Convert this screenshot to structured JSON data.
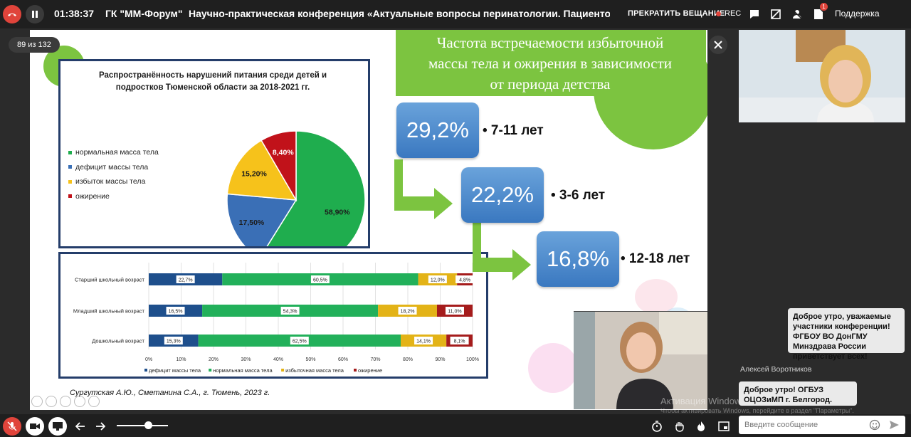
{
  "topbar": {
    "timer": "01:38:37",
    "organizer": "ГК \"ММ-Форум\"",
    "title": "Научно-практическая конференция «Актуальные вопросы перинатологии. Пациентоориен",
    "stop_broadcast": "ПРЕКРАТИТЬ ВЕЩАНИЕ",
    "rec": "REC",
    "notifications_badge": "1",
    "support": "Поддержка"
  },
  "slide_counter": "89 из 132",
  "slide": {
    "pie_title_line1": "Распространённость нарушений питания среди детей и",
    "pie_title_line2": "подростков Тюменской области за 2018-2021 гг.",
    "header_line1": "Частота встречаемости избыточной",
    "header_line2": "массы тела и  ожирения в зависимости",
    "header_line3": "от периода детства",
    "boxes": [
      {
        "value": "29,2%",
        "label": "• 7-11 лет"
      },
      {
        "value": "22,2%",
        "label": "• 3-6 лет"
      },
      {
        "value": "16,8%",
        "label": "• 12-18 лет"
      }
    ],
    "source": "Сургутская А.Ю., Сметанина С.А., г. Тюмень, 2023 г."
  },
  "chart_data": [
    {
      "type": "pie",
      "title": "Распространённость нарушений питания среди детей и подростков Тюменской области за 2018-2021 гг.",
      "categories": [
        "нормальная масса тела",
        "дефицит массы тела",
        "избыток массы тела",
        "ожирение"
      ],
      "values": [
        58.9,
        17.5,
        15.2,
        8.4
      ],
      "value_labels": [
        "58,90%",
        "17,50%",
        "15,20%",
        "8,40%"
      ],
      "colors": [
        "#1fad4e",
        "#3a6fb6",
        "#f6c21b",
        "#c1121a"
      ],
      "legend_position": "left"
    },
    {
      "type": "bar",
      "orientation": "horizontal-stacked-100",
      "categories": [
        "Старший школьный возраст",
        "Младший школьный возраст",
        "Дошкольный возраст"
      ],
      "series": [
        {
          "name": "дефицит массы тела",
          "values": [
            22.7,
            16.5,
            15.3
          ],
          "labels": [
            "22,7%",
            "16,5%",
            "15,3%"
          ],
          "color": "#1e4f8c"
        },
        {
          "name": "нормальная масса тела",
          "values": [
            60.5,
            54.3,
            62.5
          ],
          "labels": [
            "60,5%",
            "54,3%",
            "62,5%"
          ],
          "color": "#22b05a"
        },
        {
          "name": "избыточная масса тела",
          "values": [
            12.0,
            18.2,
            14.1
          ],
          "labels": [
            "12,0%",
            "18,2%",
            "14,1%"
          ],
          "color": "#e3b317"
        },
        {
          "name": "ожирение",
          "values": [
            4.8,
            11.0,
            8.1
          ],
          "labels": [
            "4,8%",
            "11,0%",
            "8,1%"
          ],
          "color": "#a51c1c"
        }
      ],
      "x_ticks": [
        "0%",
        "10%",
        "20%",
        "30%",
        "40%",
        "50%",
        "60%",
        "70%",
        "80%",
        "90%",
        "100%"
      ],
      "xlim": [
        0,
        100
      ],
      "legend_position": "bottom"
    }
  ],
  "chat": {
    "msg1": "Доброе утро, уважаемые участники конференции! ФГБОУ ВО ДонГМУ Минздрава России приветствует всех!",
    "msg2_author": "Алексей Воротников",
    "msg2": "Доброе утро! ОГБУЗ ОЦОЗиМП г. Белгород.",
    "input_placeholder": "Введите сообщение"
  },
  "watermark": {
    "title": "Активация Windows",
    "sub": "Чтобы активировать Windows, перейдите в раздел \"Параметры\"."
  }
}
